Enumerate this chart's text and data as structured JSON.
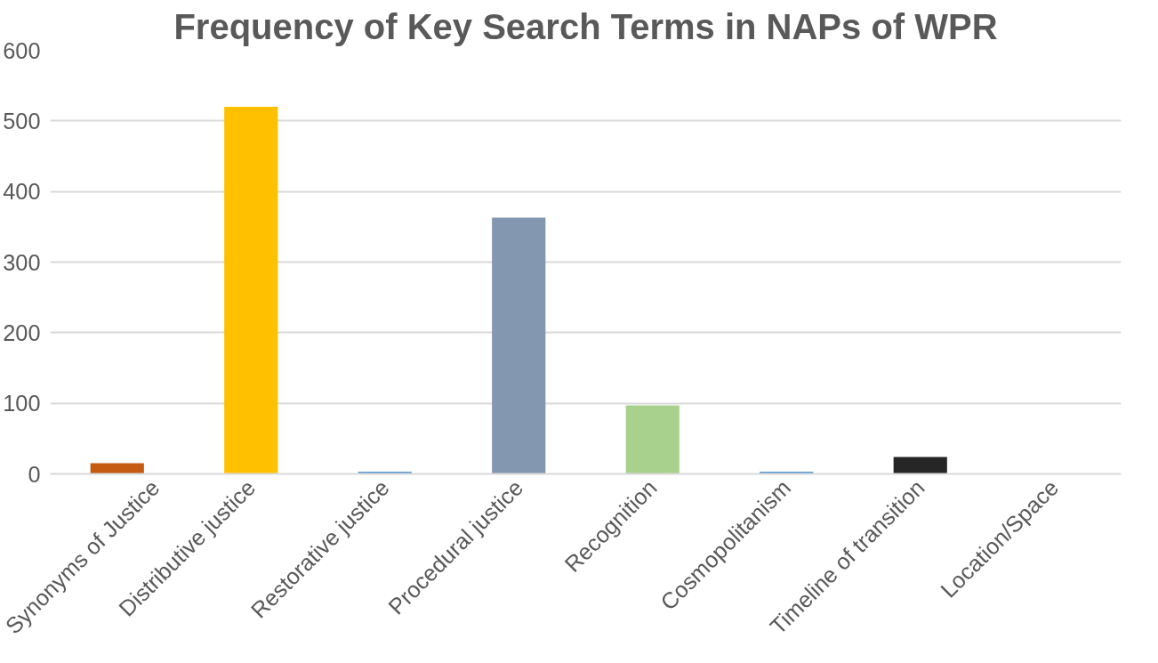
{
  "chart_data": {
    "type": "bar",
    "title": "Frequency of Key Search Terms in NAPs of WPR",
    "categories": [
      "Synonyms of Justice",
      "Distributive justice",
      "Restorative justice",
      "Procedural justice",
      "Recognition",
      "Cosmopolitanism",
      "Timeline of transition",
      "Location/Space"
    ],
    "values": [
      15,
      520,
      3,
      363,
      97,
      3,
      24,
      0
    ],
    "colors": [
      "#c55a11",
      "#ffc000",
      "#5b9bd5",
      "#8497b0",
      "#a9d18e",
      "#5b9bd5",
      "#262626",
      "#5b9bd5"
    ],
    "ylim": [
      0,
      600
    ],
    "yticks": [
      0,
      100,
      200,
      300,
      400,
      500,
      600
    ],
    "grid": "y"
  }
}
